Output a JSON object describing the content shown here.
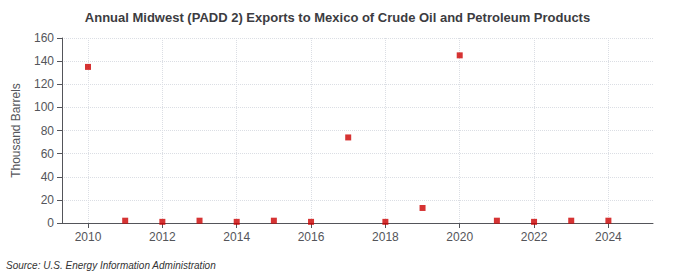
{
  "chart_data": {
    "type": "scatter",
    "title": "Annual Midwest (PADD 2) Exports to Mexico of Crude Oil and Petroleum Products",
    "ylabel": "Thousand Barrels",
    "source": "Source: U.S. Energy Information Administration",
    "x": [
      2010,
      2011,
      2012,
      2013,
      2014,
      2015,
      2016,
      2017,
      2018,
      2019,
      2020,
      2021,
      2022,
      2023,
      2024
    ],
    "values": [
      135,
      2,
      1,
      2,
      1,
      2,
      1,
      74,
      1,
      13,
      145,
      2,
      1,
      2,
      2
    ],
    "color": "#cc0000",
    "marker": "square",
    "xlim": [
      2009.3,
      2025.2
    ],
    "xticks": [
      2010,
      2012,
      2014,
      2016,
      2018,
      2020,
      2022,
      2024
    ],
    "ylim": [
      0,
      160
    ],
    "yticks": [
      0,
      20,
      40,
      60,
      80,
      100,
      120,
      140,
      160
    ],
    "grid": true
  }
}
